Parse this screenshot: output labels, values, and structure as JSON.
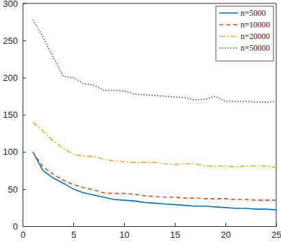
{
  "chart_data": {
    "type": "line",
    "x": [
      1,
      2,
      3,
      4,
      5,
      6,
      7,
      8,
      9,
      10,
      11,
      12,
      13,
      14,
      15,
      16,
      17,
      18,
      19,
      20,
      21,
      22,
      23,
      24,
      25
    ],
    "series": [
      {
        "name": "n=5000",
        "color": "#0072bd",
        "line_style": "solid",
        "values": [
          100,
          75,
          65,
          58,
          50,
          45,
          42,
          39,
          36,
          35,
          34,
          32,
          31,
          30,
          29,
          28,
          27,
          27,
          26,
          25,
          24,
          24,
          23,
          23,
          22
        ]
      },
      {
        "name": "n=10000",
        "color": "#d95319",
        "line_style": "dashed",
        "values": [
          100,
          80,
          70,
          62,
          56,
          52,
          49,
          45,
          44,
          44,
          43,
          41,
          40,
          39,
          39,
          38,
          38,
          37,
          37,
          37,
          36,
          36,
          35,
          35,
          35
        ]
      },
      {
        "name": "n=20000",
        "color": "#edb120",
        "line_style": "dashdot",
        "values": [
          140,
          128,
          115,
          105,
          97,
          94,
          94,
          90,
          88,
          87,
          86,
          86,
          86,
          84,
          83,
          84,
          84,
          81,
          81,
          81,
          80,
          81,
          81,
          81,
          79
        ]
      },
      {
        "name": "n=50000",
        "color": "#7e2f8e",
        "line_style": "dotted",
        "values": [
          278,
          255,
          228,
          202,
          200,
          192,
          190,
          183,
          183,
          182,
          178,
          177,
          176,
          175,
          174,
          173,
          170,
          171,
          175,
          168,
          168,
          168,
          167,
          167,
          168
        ]
      }
    ],
    "xlim": [
      0,
      25
    ],
    "xticks": [
      0,
      5,
      10,
      15,
      20,
      25
    ],
    "ylim": [
      0,
      300
    ],
    "yticks": [
      0,
      50,
      100,
      150,
      200,
      250,
      300
    ],
    "grid": false,
    "legend": "top-right"
  }
}
